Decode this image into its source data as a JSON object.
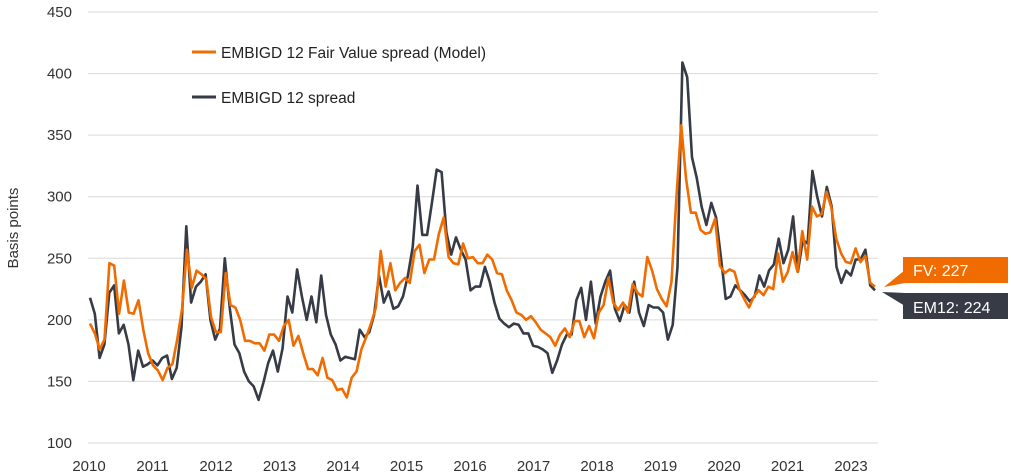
{
  "chart_data": {
    "type": "line",
    "title": "",
    "xlabel": "",
    "ylabel": "Basis points",
    "ylim": [
      100,
      450
    ],
    "yticks": [
      "100",
      "150",
      "200",
      "250",
      "300",
      "350",
      "400",
      "450"
    ],
    "xticks": [
      "2010",
      "2011",
      "2012",
      "2013",
      "2014",
      "2015",
      "2016",
      "2017",
      "2018",
      "2019",
      "2020",
      "2021",
      "2023"
    ],
    "grid": "horizontal",
    "legend_position": "top-left",
    "series": [
      {
        "name": "EMBIGD 12 Fair Value spread (Model)",
        "color": "#F06C00",
        "values": [
          197,
          189,
          176,
          184,
          246,
          244,
          205,
          232,
          206,
          205,
          216,
          192,
          173,
          163,
          159,
          151,
          161,
          164,
          184,
          209,
          257,
          226,
          240,
          237,
          233,
          202,
          190,
          190,
          238,
          212,
          210,
          200,
          183,
          183,
          181,
          181,
          175,
          188,
          188,
          183,
          195,
          200,
          179,
          187,
          173,
          160,
          160,
          155,
          169,
          153,
          151,
          143,
          144,
          137,
          153,
          158,
          176,
          186,
          197,
          210,
          256,
          227,
          246,
          224,
          230,
          234,
          230,
          256,
          261,
          238,
          249,
          249,
          270,
          283,
          251,
          246,
          245,
          262,
          250,
          251,
          246,
          246,
          253,
          249,
          238,
          237,
          224,
          216,
          206,
          204,
          200,
          203,
          198,
          192,
          189,
          186,
          179,
          188,
          193,
          186,
          199,
          199,
          186,
          195,
          185,
          206,
          212,
          234,
          214,
          208,
          214,
          206,
          229,
          222,
          219,
          251,
          240,
          225,
          217,
          211,
          231,
          298,
          358,
          315,
          287,
          287,
          273,
          270,
          271,
          282,
          244,
          238,
          241,
          239,
          225,
          217,
          210,
          219,
          224,
          220,
          227,
          225,
          254,
          231,
          239,
          255,
          239,
          272,
          249,
          292,
          284,
          286,
          304,
          291,
          266,
          254,
          247,
          246,
          258,
          247,
          252,
          230,
          227
        ]
      },
      {
        "name": "EMBIGD 12 spread",
        "color": "#363B45",
        "values": [
          218,
          205,
          169,
          180,
          222,
          228,
          189,
          196,
          180,
          151,
          175,
          162,
          164,
          167,
          163,
          169,
          171,
          152,
          161,
          194,
          276,
          214,
          227,
          231,
          237,
          200,
          184,
          193,
          250,
          210,
          180,
          173,
          158,
          150,
          146,
          135,
          149,
          165,
          175,
          158,
          177,
          219,
          206,
          241,
          219,
          200,
          219,
          198,
          236,
          204,
          188,
          180,
          167,
          170,
          169,
          168,
          192,
          186,
          190,
          204,
          236,
          214,
          223,
          209,
          211,
          219,
          236,
          259,
          309,
          269,
          269,
          295,
          322,
          320,
          271,
          253,
          267,
          257,
          249,
          224,
          227,
          227,
          243,
          231,
          214,
          201,
          197,
          194,
          197,
          196,
          189,
          189,
          179,
          178,
          176,
          173,
          157,
          167,
          180,
          188,
          188,
          216,
          226,
          200,
          231,
          197,
          219,
          231,
          240,
          209,
          199,
          212,
          206,
          231,
          206,
          195,
          212,
          210,
          210,
          206,
          184,
          196,
          243,
          409,
          397,
          332,
          315,
          292,
          277,
          295,
          283,
          251,
          217,
          219,
          228,
          224,
          220,
          215,
          219,
          236,
          227,
          240,
          245,
          266,
          246,
          257,
          284,
          239,
          265,
          262,
          321,
          300,
          284,
          308,
          292,
          243,
          230,
          240,
          236,
          249,
          249,
          257,
          228,
          224
        ]
      }
    ],
    "annotations": [
      {
        "label": "FV: 227",
        "value": 227,
        "color": "#F06C00"
      },
      {
        "label": "EM12: 224",
        "value": 224,
        "color": "#363B45"
      }
    ]
  }
}
